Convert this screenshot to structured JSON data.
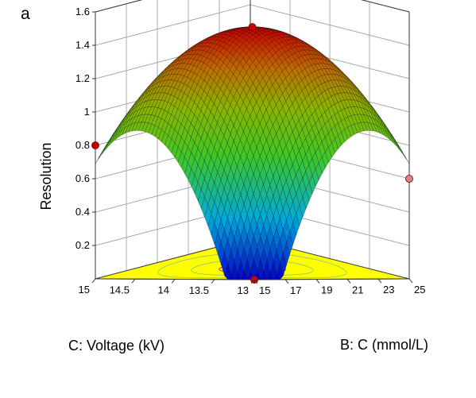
{
  "panel_label": "a",
  "chart_data": {
    "type": "surface",
    "zlabel": "Resolution",
    "xlabel": "B: C (mmol/L)",
    "ylabel": "C: Voltage (kV)",
    "z_ticks": [
      "0.2",
      "0.4",
      "0.6",
      "0.8",
      "1",
      "1.2",
      "1.4",
      "1.6"
    ],
    "x_ticks": [
      "15",
      "17",
      "19",
      "21",
      "23",
      "25"
    ],
    "y_ticks": [
      "13",
      "13.5",
      "14",
      "14.5",
      "15"
    ],
    "x_range": [
      15,
      25
    ],
    "y_range": [
      13,
      15
    ],
    "z_range": [
      0.0,
      1.6
    ],
    "peak": {
      "x": 20,
      "y": 14,
      "z": 1.45
    },
    "corner_values": [
      {
        "x": 15,
        "y": 13,
        "z": 0.0
      },
      {
        "x": 25,
        "y": 13,
        "z": 0.6
      },
      {
        "x": 15,
        "y": 15,
        "z": 0.8
      },
      {
        "x": 25,
        "y": 15,
        "z": 0.0
      }
    ],
    "design_points": [
      {
        "x": 20,
        "y": 14,
        "z": 1.45,
        "color": "#cc0000"
      },
      {
        "x": 15,
        "y": 15,
        "z": 0.8,
        "color": "#cc0000"
      },
      {
        "x": 25,
        "y": 13,
        "z": 0.6,
        "color": "#e08080"
      },
      {
        "x": 15,
        "y": 13,
        "z": 0.0,
        "color": "#cc0000"
      }
    ],
    "floor_color": "#ffff00",
    "grid": true
  }
}
